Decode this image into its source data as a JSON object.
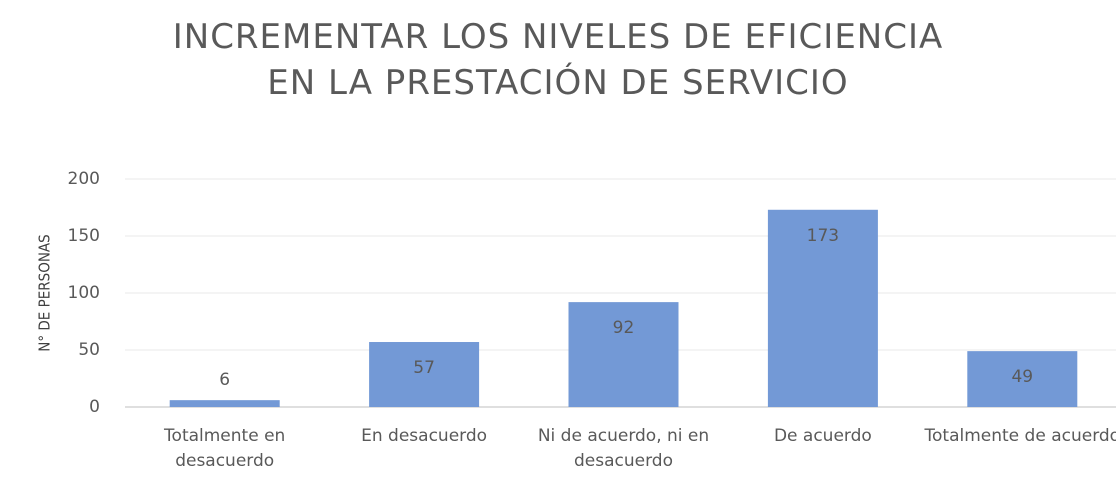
{
  "chart_data": {
    "type": "bar",
    "title": "INCREMENTAR LOS NIVELES DE EFICIENCIA EN LA PRESTACIÓN DE SERVICIO",
    "y_axis_label": "N° DE PERSONAS",
    "categories": [
      "Totalmente en desacuerdo",
      "En desacuerdo",
      "Ni de acuerdo, ni en desacuerdo",
      "De acuerdo",
      "Totalmente de acuerdo"
    ],
    "values": [
      6,
      57,
      92,
      173,
      49
    ],
    "color": "#7399d6",
    "ylim": [
      0,
      200
    ],
    "yticks": [
      0,
      50,
      100,
      150,
      200
    ],
    "grid": true
  }
}
